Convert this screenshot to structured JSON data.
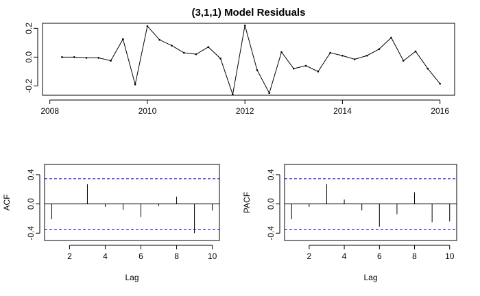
{
  "chart_data": [
    {
      "type": "line",
      "title": "(3,1,1) Model Residuals",
      "xlabel": "",
      "ylabel": "",
      "xlim": [
        2007.85,
        2016.3
      ],
      "ylim": [
        -0.265,
        0.235
      ],
      "xticks": [
        2008,
        2010,
        2012,
        2014,
        2016
      ],
      "xtick_labels": [
        "2008",
        "2010",
        "2012",
        "2014",
        "2016"
      ],
      "yticks": [
        -0.2,
        0.0,
        0.2
      ],
      "ytick_labels": [
        "-0.2",
        "0.0",
        "0.2"
      ],
      "x": [
        2008.25,
        2008.5,
        2008.75,
        2009.0,
        2009.25,
        2009.5,
        2009.75,
        2010.0,
        2010.25,
        2010.5,
        2010.75,
        2011.0,
        2011.25,
        2011.5,
        2011.75,
        2012.0,
        2012.25,
        2012.5,
        2012.75,
        2013.0,
        2013.25,
        2013.5,
        2013.75,
        2014.0,
        2014.25,
        2014.5,
        2014.75,
        2015.0,
        2015.25,
        2015.5,
        2015.75,
        2016.0
      ],
      "values": [
        0.0,
        0.0,
        -0.005,
        -0.005,
        -0.025,
        0.125,
        -0.19,
        0.215,
        0.12,
        0.08,
        0.03,
        0.02,
        0.07,
        -0.01,
        -0.26,
        0.22,
        -0.09,
        -0.25,
        0.035,
        -0.08,
        -0.06,
        -0.1,
        0.03,
        0.01,
        -0.015,
        0.01,
        0.055,
        0.135,
        -0.025,
        0.04,
        -0.08,
        -0.185
      ],
      "line_color": "#000000",
      "grid": false
    },
    {
      "type": "bar",
      "title": "",
      "xlabel": "Lag",
      "ylabel": "ACF",
      "xlim": [
        0.6,
        10.4
      ],
      "ylim": [
        -0.5,
        0.54
      ],
      "xticks": [
        2,
        4,
        6,
        8,
        10
      ],
      "xtick_labels": [
        "2",
        "4",
        "6",
        "8",
        "10"
      ],
      "yticks": [
        -0.4,
        0.0,
        0.4
      ],
      "ytick_labels": [
        "-0.4",
        "0.0",
        "0.4"
      ],
      "lags": [
        1,
        2,
        3,
        4,
        5,
        6,
        7,
        8,
        9,
        10
      ],
      "values": [
        -0.21,
        0.0,
        0.27,
        -0.04,
        -0.08,
        -0.18,
        -0.03,
        0.1,
        -0.4,
        -0.09
      ],
      "confidence_bound": 0.345,
      "bound_color": "#0000cc",
      "bar_color": "#000000"
    },
    {
      "type": "bar",
      "title": "",
      "xlabel": "Lag",
      "ylabel": "PACF",
      "xlim": [
        0.6,
        10.4
      ],
      "ylim": [
        -0.5,
        0.54
      ],
      "xticks": [
        2,
        4,
        6,
        8,
        10
      ],
      "xtick_labels": [
        "2",
        "4",
        "6",
        "8",
        "10"
      ],
      "yticks": [
        -0.4,
        0.0,
        0.4
      ],
      "ytick_labels": [
        "-0.4",
        "0.0",
        "0.4"
      ],
      "lags": [
        1,
        2,
        3,
        4,
        5,
        6,
        7,
        8,
        9,
        10
      ],
      "values": [
        -0.21,
        -0.04,
        0.27,
        0.06,
        -0.09,
        -0.31,
        -0.14,
        0.16,
        -0.25,
        -0.24
      ],
      "confidence_bound": 0.345,
      "bound_color": "#0000cc",
      "bar_color": "#000000"
    }
  ]
}
